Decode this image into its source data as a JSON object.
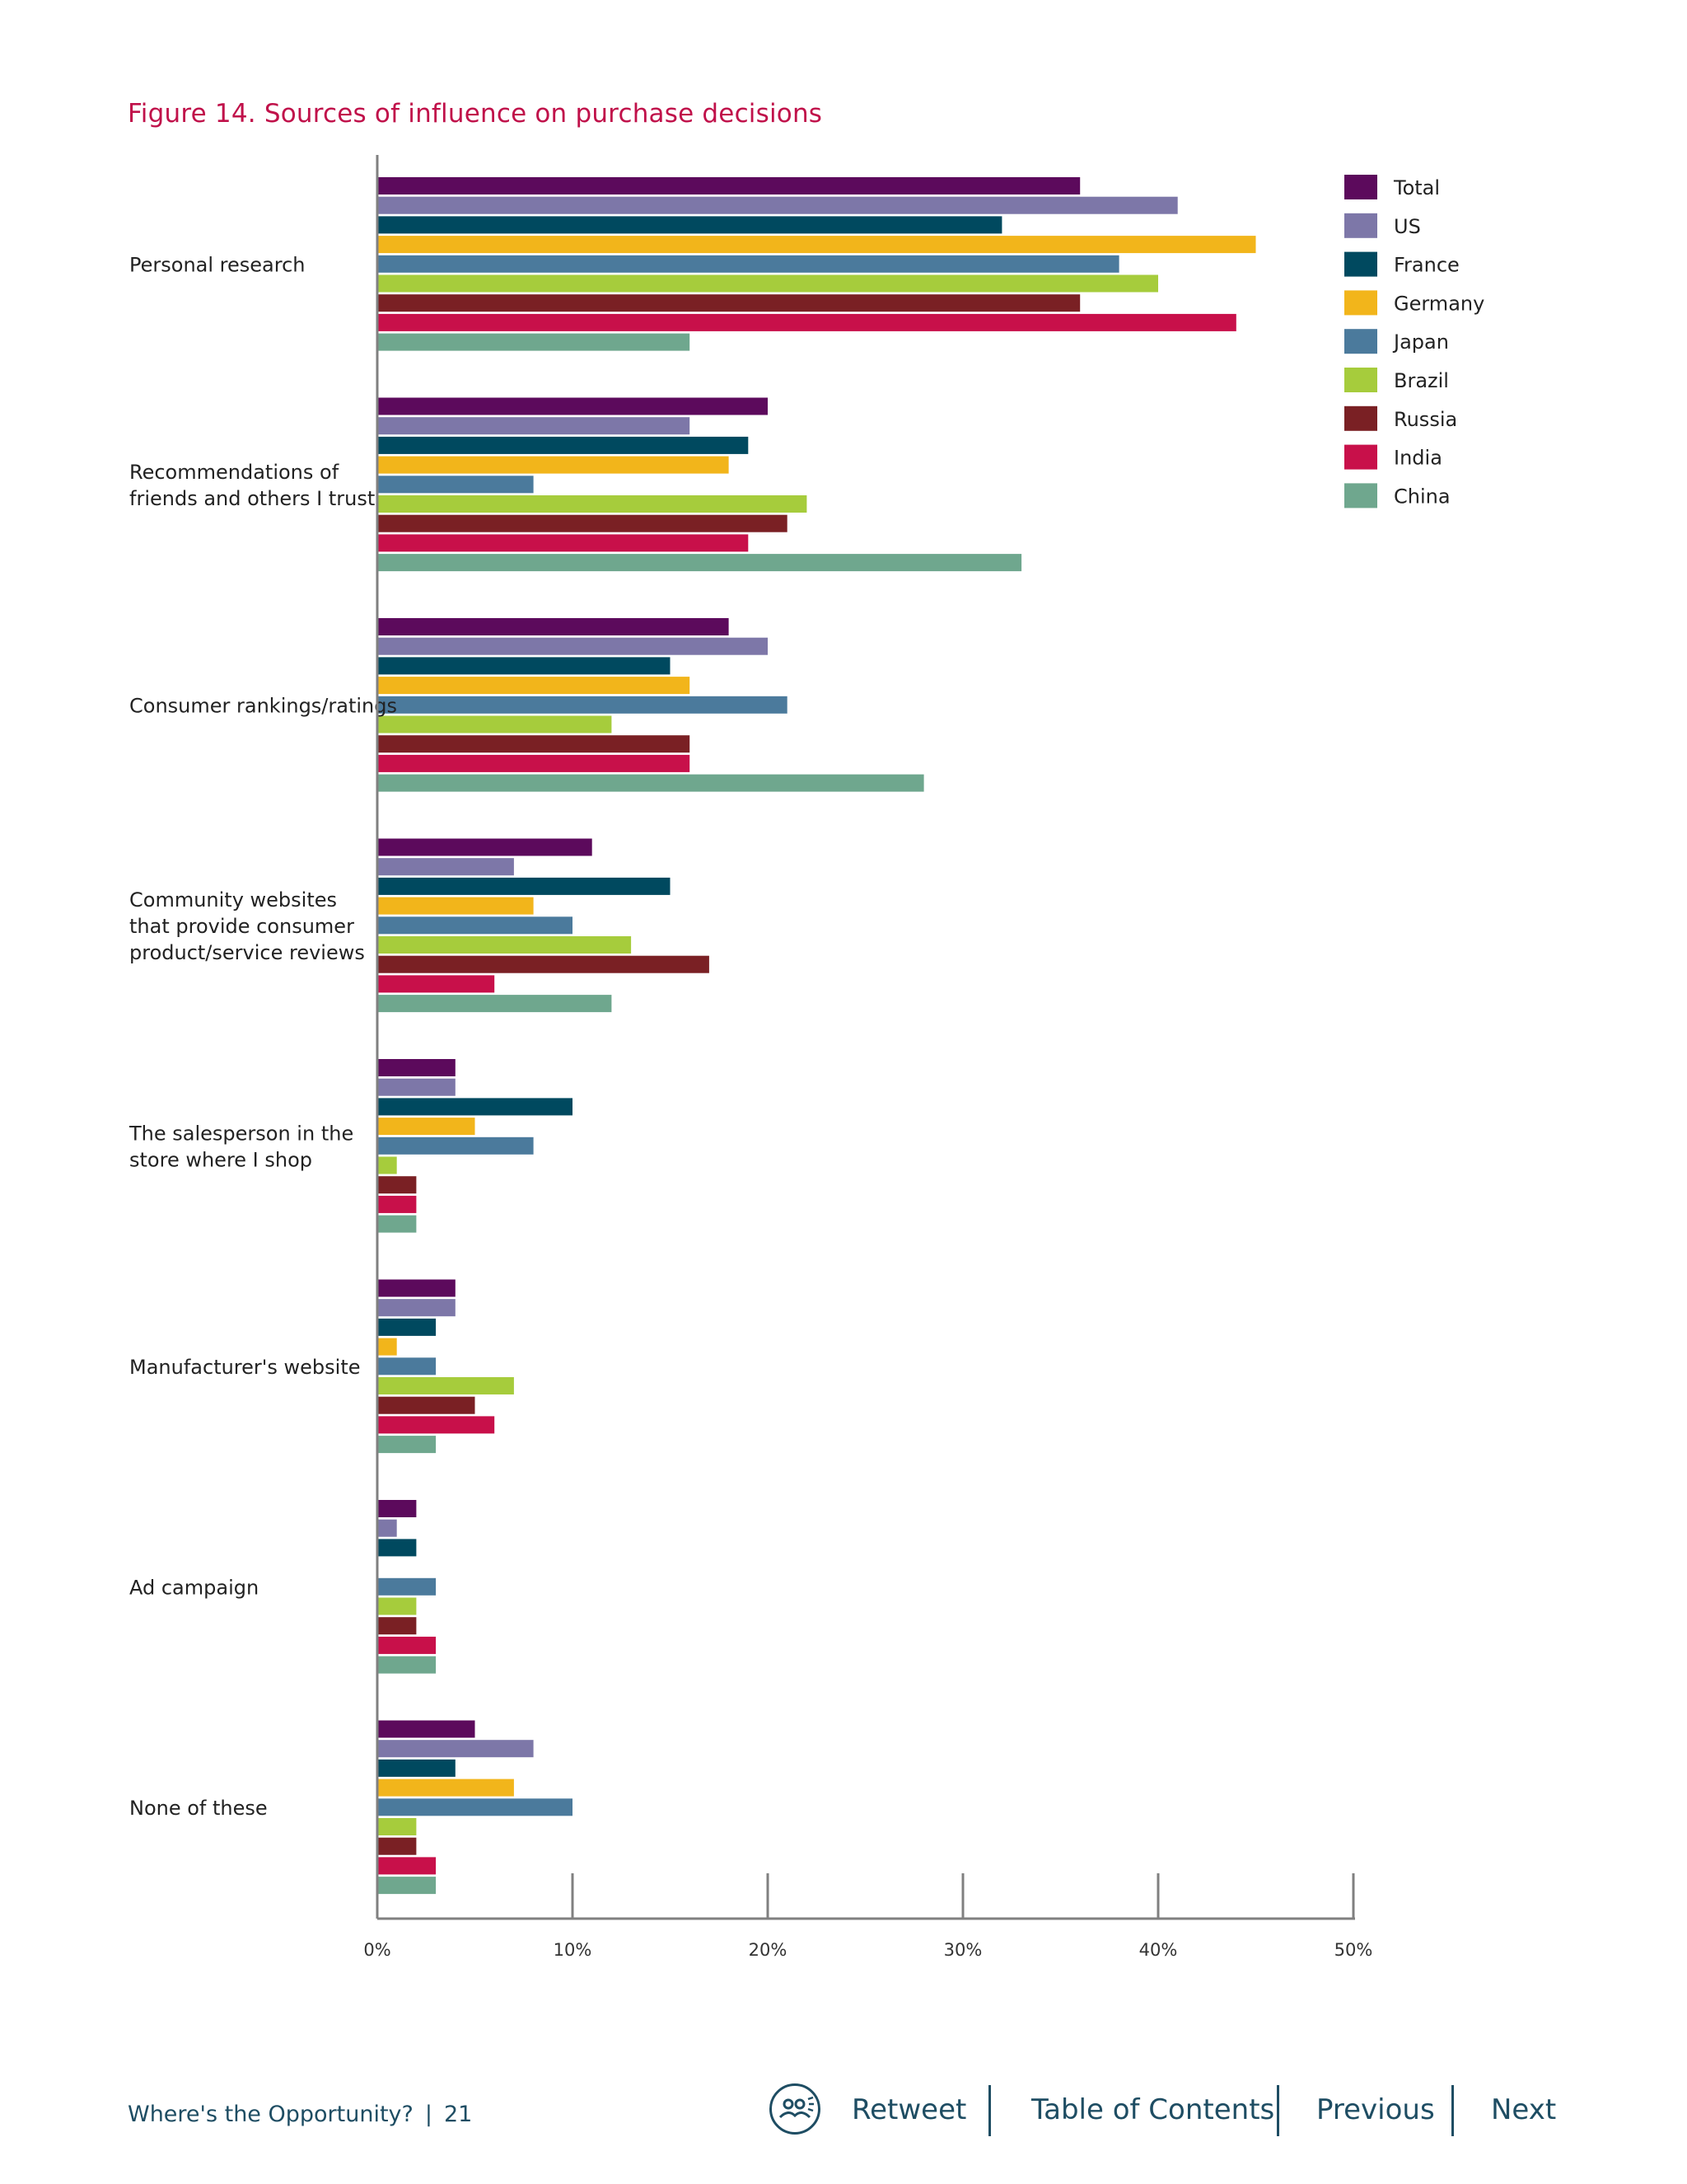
{
  "figure_title": "Figure 14. Sources of influence on purchase decisions",
  "chart_data": {
    "type": "bar",
    "orientation": "horizontal",
    "title": "Figure 14. Sources of influence on purchase decisions",
    "categories": [
      [
        "Personal research"
      ],
      [
        "Recommendations of",
        "friends and others I trust"
      ],
      [
        "Consumer rankings/ratings"
      ],
      [
        "Community websites",
        "that provide consumer",
        "product/service reviews"
      ],
      [
        "The salesperson in the",
        "store where I shop"
      ],
      [
        "Manufacturer's website"
      ],
      [
        "Ad campaign"
      ],
      [
        "None of these"
      ]
    ],
    "series": [
      {
        "name": "Total",
        "color": "#5c0a5c",
        "values": [
          36,
          20,
          18,
          11,
          4,
          4,
          2,
          5
        ]
      },
      {
        "name": "US",
        "color": "#7d77a8",
        "values": [
          41,
          16,
          20,
          7,
          4,
          4,
          1,
          8
        ]
      },
      {
        "name": "France",
        "color": "#00495f",
        "values": [
          32,
          19,
          15,
          15,
          10,
          3,
          2,
          4
        ]
      },
      {
        "name": "Germany",
        "color": "#f2b51b",
        "values": [
          45,
          18,
          16,
          8,
          5,
          1,
          0,
          7
        ]
      },
      {
        "name": "Japan",
        "color": "#4b7a9c",
        "values": [
          38,
          8,
          21,
          10,
          8,
          3,
          3,
          10
        ]
      },
      {
        "name": "Brazil",
        "color": "#a6cc3c",
        "values": [
          40,
          22,
          12,
          13,
          1,
          7,
          2,
          2
        ]
      },
      {
        "name": "Russia",
        "color": "#7a2024",
        "values": [
          36,
          21,
          16,
          17,
          2,
          5,
          2,
          2
        ]
      },
      {
        "name": "India",
        "color": "#c8104a",
        "values": [
          44,
          19,
          16,
          6,
          2,
          6,
          3,
          3
        ]
      },
      {
        "name": "China",
        "color": "#6fa78e",
        "values": [
          16,
          33,
          28,
          12,
          2,
          3,
          3,
          3
        ]
      }
    ],
    "xlim": [
      0,
      50
    ],
    "xticks": [
      "0%",
      "10%",
      "20%",
      "30%",
      "40%",
      "50%"
    ],
    "legend_position": "top-right",
    "grid": false
  },
  "footer": {
    "doc_title": "Where's the Opportunity?",
    "separator": "|",
    "page_number": "21",
    "nav": {
      "retweet": "Retweet",
      "toc": "Table of Contents",
      "previous": "Previous",
      "next": "Next"
    },
    "retweet_icon": "group-people-icon"
  }
}
